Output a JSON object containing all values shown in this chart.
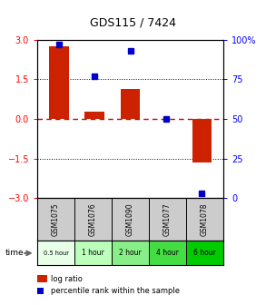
{
  "title": "GDS115 / 7424",
  "samples": [
    "GSM1075",
    "GSM1076",
    "GSM1090",
    "GSM1077",
    "GSM1078"
  ],
  "time_labels": [
    "0.5 hour",
    "1 hour",
    "2 hour",
    "4 hour",
    "6 hour"
  ],
  "log_ratios": [
    2.75,
    0.28,
    1.15,
    0.0,
    -1.65
  ],
  "percentile_ranks": [
    97,
    77,
    93,
    50,
    3
  ],
  "ylim_left": [
    -3,
    3
  ],
  "ylim_right": [
    0,
    100
  ],
  "yticks_left": [
    -3,
    -1.5,
    0,
    1.5,
    3
  ],
  "yticks_right": [
    0,
    25,
    50,
    75,
    100
  ],
  "bar_color": "#cc2200",
  "dot_color": "#0000cc",
  "zero_line_color": "#cc0000",
  "bg_color": "#ffffff",
  "plot_bg": "#ffffff",
  "time_colors": [
    "#e8ffe8",
    "#bbffbb",
    "#88ee88",
    "#44dd44",
    "#00cc00"
  ],
  "sample_bg": "#cccccc",
  "legend_log": "log ratio",
  "legend_pct": "percentile rank within the sample",
  "time_row_label": "time"
}
